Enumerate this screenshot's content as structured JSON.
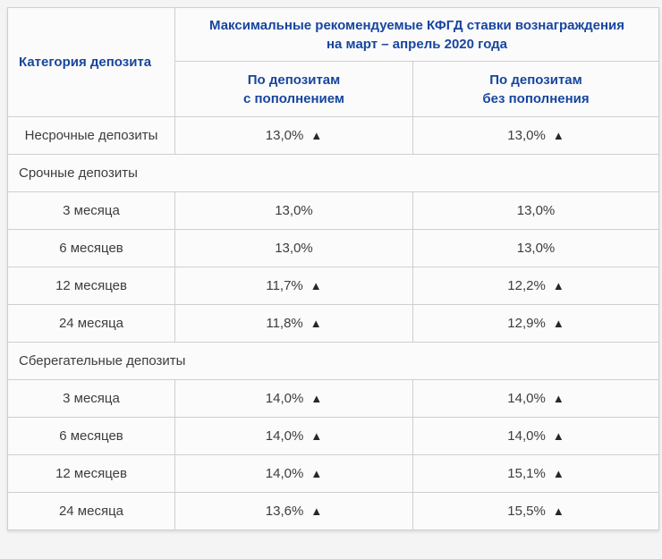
{
  "chart_data": {
    "type": "table",
    "title": "Максимальные рекомендуемые КФГД ставки вознаграждения на март – апрель 2020 года",
    "columns": [
      "Категория депозита",
      "По депозитам с пополнением",
      "По депозитам без пополнения"
    ],
    "rows": [
      {
        "type": "data",
        "label": "Несрочные депозиты",
        "cells": [
          {
            "value": "13,0%",
            "up": true
          },
          {
            "value": "13,0%",
            "up": true
          }
        ]
      },
      {
        "type": "section",
        "label": "Срочные депозиты"
      },
      {
        "type": "data",
        "label": "3 месяца",
        "cells": [
          {
            "value": "13,0%",
            "up": false
          },
          {
            "value": "13,0%",
            "up": false
          }
        ]
      },
      {
        "type": "data",
        "label": "6 месяцев",
        "cells": [
          {
            "value": "13,0%",
            "up": false
          },
          {
            "value": "13,0%",
            "up": false
          }
        ]
      },
      {
        "type": "data",
        "label": "12 месяцев",
        "cells": [
          {
            "value": "11,7%",
            "up": true
          },
          {
            "value": "12,2%",
            "up": true
          }
        ]
      },
      {
        "type": "data",
        "label": "24 месяца",
        "cells": [
          {
            "value": "11,8%",
            "up": true
          },
          {
            "value": "12,9%",
            "up": true
          }
        ]
      },
      {
        "type": "section",
        "label": "Сберегательные депозиты"
      },
      {
        "type": "data",
        "label": "3 месяца",
        "cells": [
          {
            "value": "14,0%",
            "up": true
          },
          {
            "value": "14,0%",
            "up": true
          }
        ]
      },
      {
        "type": "data",
        "label": "6 месяцев",
        "cells": [
          {
            "value": "14,0%",
            "up": true
          },
          {
            "value": "14,0%",
            "up": true
          }
        ]
      },
      {
        "type": "data",
        "label": "12 месяцев",
        "cells": [
          {
            "value": "14,0%",
            "up": true
          },
          {
            "value": "15,1%",
            "up": true
          }
        ]
      },
      {
        "type": "data",
        "label": "24 месяца",
        "cells": [
          {
            "value": "13,6%",
            "up": true
          },
          {
            "value": "15,5%",
            "up": true
          }
        ]
      }
    ],
    "layout": {
      "grid": true,
      "header_rows": 2,
      "section_rows_span_all_columns": true
    }
  },
  "header": {
    "category": "Категория депозита",
    "title_line1": "Максимальные рекомендуемые КФГД ставки вознаграждения",
    "title_line2": "на март – апрель 2020 года",
    "col2_line1": "По депозитам",
    "col2_line2": "с пополнением",
    "col3_line1": "По депозитам",
    "col3_line2": "без пополнения"
  },
  "icons": {
    "up_arrow": "▲"
  },
  "colors": {
    "header_text": "#17459e",
    "body_text": "#3d3d3d",
    "arrow": "#26262e",
    "border": "#cfcfcf",
    "cell_bg": "#fbfbfb",
    "page_bg": "#f4f4f5"
  }
}
